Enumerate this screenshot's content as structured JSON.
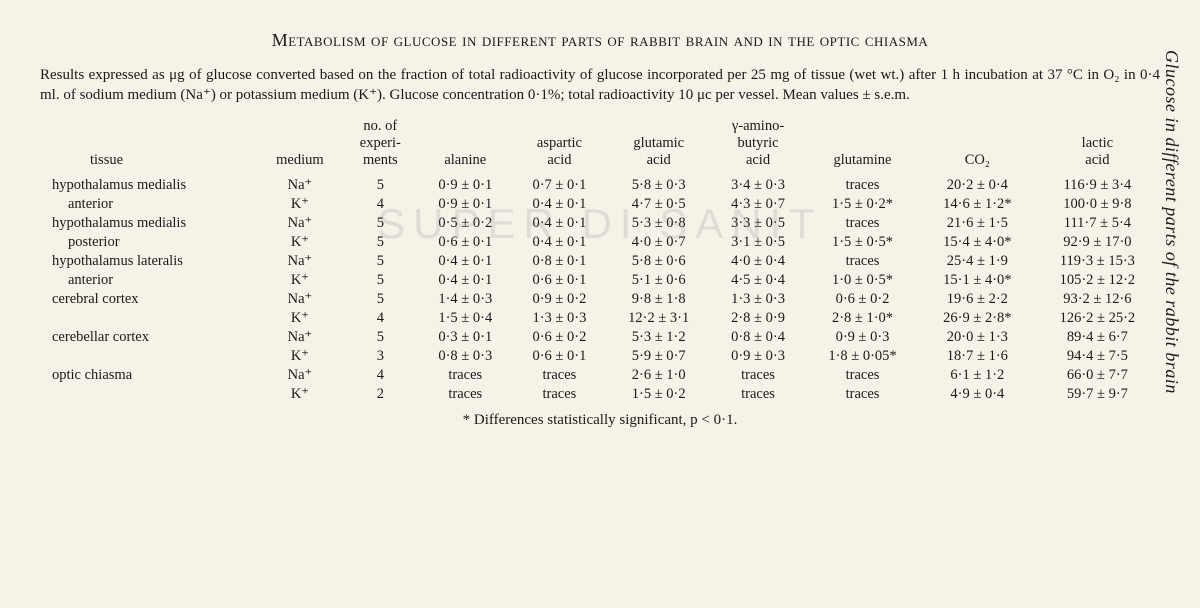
{
  "side_title": "Glucose in different parts of the rabbit brain",
  "title": "Metabolism of glucose in different parts of rabbit brain and in the optic chiasma",
  "caption": "Results expressed as μg of glucose converted based on the fraction of total radioactivity of glucose incorporated per 25 mg of tissue (wet wt.) after 1 h incubation at 37 °C in O₂ in 0·4 ml. of sodium medium (Na⁺) or potassium medium (K⁺). Glucose concentration 0·1%; total radioactivity 10 μc per vessel. Mean values ± s.e.m.",
  "headers": {
    "tissue": "tissue",
    "medium": "medium",
    "nexp": "no. of\nexperi-\nments",
    "alanine": "alanine",
    "aspartic": "aspartic\nacid",
    "glutamic": "glutamic\nacid",
    "gaba": "γ-amino-\nbutyric\nacid",
    "glutamine": "glutamine",
    "co2": "CO₂",
    "lactic": "lactic\nacid"
  },
  "rows": [
    {
      "tissue": "hypothalamus medialis",
      "sub": false,
      "medium": "Na⁺",
      "n": "5",
      "alanine": "0·9 ± 0·1",
      "aspartic": "0·7 ± 0·1",
      "glutamic": "5·8 ± 0·3",
      "gaba": "3·4 ± 0·3",
      "glutamine": "traces",
      "co2": "20·2 ± 0·4",
      "lactic": "116·9 ± 3·4"
    },
    {
      "tissue": "anterior",
      "sub": true,
      "medium": "K⁺",
      "n": "4",
      "alanine": "0·9 ± 0·1",
      "aspartic": "0·4 ± 0·1",
      "glutamic": "4·7 ± 0·5",
      "gaba": "4·3 ± 0·7",
      "glutamine": "1·5 ± 0·2*",
      "co2": "14·6 ± 1·2*",
      "lactic": "100·0 ± 9·8"
    },
    {
      "tissue": "hypothalamus medialis",
      "sub": false,
      "medium": "Na⁺",
      "n": "5",
      "alanine": "0·5 ± 0·2",
      "aspartic": "0·4 ± 0·1",
      "glutamic": "5·3 ± 0·8",
      "gaba": "3·3 ± 0·5",
      "glutamine": "traces",
      "co2": "21·6 ± 1·5",
      "lactic": "111·7 ± 5·4"
    },
    {
      "tissue": "posterior",
      "sub": true,
      "medium": "K⁺",
      "n": "5",
      "alanine": "0·6 ± 0·1",
      "aspartic": "0·4 ± 0·1",
      "glutamic": "4·0 ± 0·7",
      "gaba": "3·1 ± 0·5",
      "glutamine": "1·5 ± 0·5*",
      "co2": "15·4 ± 4·0*",
      "lactic": "92·9 ± 17·0"
    },
    {
      "tissue": "hypothalamus lateralis",
      "sub": false,
      "medium": "Na⁺",
      "n": "5",
      "alanine": "0·4 ± 0·1",
      "aspartic": "0·8 ± 0·1",
      "glutamic": "5·8 ± 0·6",
      "gaba": "4·0 ± 0·4",
      "glutamine": "traces",
      "co2": "25·4 ± 1·9",
      "lactic": "119·3 ± 15·3"
    },
    {
      "tissue": "anterior",
      "sub": true,
      "medium": "K⁺",
      "n": "5",
      "alanine": "0·4 ± 0·1",
      "aspartic": "0·6 ± 0·1",
      "glutamic": "5·1 ± 0·6",
      "gaba": "4·5 ± 0·4",
      "glutamine": "1·0 ± 0·5*",
      "co2": "15·1 ± 4·0*",
      "lactic": "105·2 ± 12·2"
    },
    {
      "tissue": "cerebral cortex",
      "sub": false,
      "medium": "Na⁺",
      "n": "5",
      "alanine": "1·4 ± 0·3",
      "aspartic": "0·9 ± 0·2",
      "glutamic": "9·8 ± 1·8",
      "gaba": "1·3 ± 0·3",
      "glutamine": "0·6 ± 0·2",
      "co2": "19·6 ± 2·2",
      "lactic": "93·2 ± 12·6"
    },
    {
      "tissue": "",
      "sub": false,
      "medium": "K⁺",
      "n": "4",
      "alanine": "1·5 ± 0·4",
      "aspartic": "1·3 ± 0·3",
      "glutamic": "12·2 ± 3·1",
      "gaba": "2·8 ± 0·9",
      "glutamine": "2·8 ± 1·0*",
      "co2": "26·9 ± 2·8*",
      "lactic": "126·2 ± 25·2"
    },
    {
      "tissue": "cerebellar cortex",
      "sub": false,
      "medium": "Na⁺",
      "n": "5",
      "alanine": "0·3 ± 0·1",
      "aspartic": "0·6 ± 0·2",
      "glutamic": "5·3 ± 1·2",
      "gaba": "0·8 ± 0·4",
      "glutamine": "0·9 ± 0·3",
      "co2": "20·0 ± 1·3",
      "lactic": "89·4 ± 6·7"
    },
    {
      "tissue": "",
      "sub": false,
      "medium": "K⁺",
      "n": "3",
      "alanine": "0·8 ± 0·3",
      "aspartic": "0·6 ± 0·1",
      "glutamic": "5·9 ± 0·7",
      "gaba": "0·9 ± 0·3",
      "glutamine": "1·8 ± 0·05*",
      "co2": "18·7 ± 1·6",
      "lactic": "94·4 ± 7·5"
    },
    {
      "tissue": "optic chiasma",
      "sub": false,
      "medium": "Na⁺",
      "n": "4",
      "alanine": "traces",
      "aspartic": "traces",
      "glutamic": "2·6 ± 1·0",
      "gaba": "traces",
      "glutamine": "traces",
      "co2": "6·1 ± 1·2",
      "lactic": "66·0 ± 7·7"
    },
    {
      "tissue": "",
      "sub": false,
      "medium": "K⁺",
      "n": "2",
      "alanine": "traces",
      "aspartic": "traces",
      "glutamic": "1·5 ± 0·2",
      "gaba": "traces",
      "glutamine": "traces",
      "co2": "4·9 ± 0·4",
      "lactic": "59·7 ± 9·7"
    }
  ],
  "footnote": "* Differences statistically significant, p < 0·1.",
  "watermark": "SUPER DI SANIT"
}
